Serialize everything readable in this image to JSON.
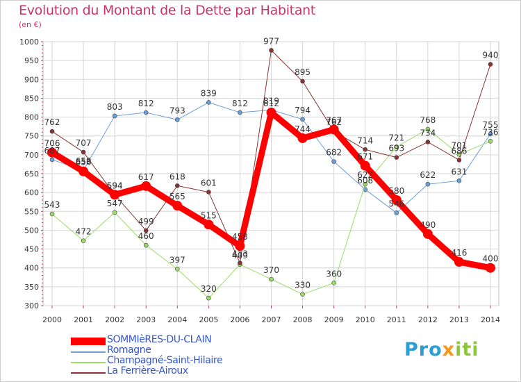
{
  "title": "Evolution du Montant de la Dette par Habitant",
  "unit": "(en €)",
  "brand": {
    "part1": "Pro",
    "part2": "x",
    "part3": "iti"
  },
  "chart_data": {
    "type": "line",
    "x": [
      "2000",
      "2001",
      "2002",
      "2003",
      "2004",
      "2005",
      "2006",
      "2007",
      "2008",
      "2009",
      "2010",
      "2011",
      "2012",
      "2013",
      "2014"
    ],
    "ylim": [
      300,
      1000
    ],
    "yticks": [
      300,
      350,
      400,
      450,
      500,
      550,
      600,
      650,
      700,
      750,
      800,
      850,
      900,
      950,
      1000
    ],
    "grid": true,
    "legend_position": "bottom-left",
    "series": [
      {
        "name": "SOMMIèRES-DU-CLAIN",
        "color": "#ff0000",
        "width": 9,
        "values": [
          706,
          656,
          594,
          617,
          565,
          515,
          458,
          812,
          744,
          767,
          671,
          580,
          490,
          416,
          400
        ],
        "labels": [
          "706",
          "656",
          "594",
          "617",
          "565",
          "515",
          "458",
          "812",
          "744",
          "767",
          "671",
          "580",
          "490",
          "416",
          "400"
        ]
      },
      {
        "name": "Romagne",
        "color": "#6b9fd8",
        "width": 1,
        "values": [
          687,
          659,
          803,
          812,
          793,
          839,
          812,
          819,
          794,
          682,
          608,
          546,
          622,
          631,
          755
        ],
        "labels": [
          "687",
          "659",
          "803",
          "812",
          "793",
          "839",
          "812",
          "819",
          "794",
          "682",
          "608",
          "546",
          "622",
          "631",
          "755"
        ]
      },
      {
        "name": "Champagné-Saint-Hilaire",
        "color": "#99dd66",
        "width": 1,
        "values": [
          543,
          472,
          547,
          460,
          397,
          320,
          409,
          370,
          330,
          360,
          622,
          721,
          768,
          701,
          736
        ],
        "labels": [
          "543",
          "472",
          "547",
          "460",
          "397",
          "320",
          "409",
          "370",
          "330",
          "360",
          "622",
          "721",
          "768",
          "701",
          "736"
        ]
      },
      {
        "name": "La Ferrière-Airoux",
        "color": "#883333",
        "width": 1,
        "values": [
          762,
          707,
          594,
          499,
          618,
          601,
          413,
          977,
          895,
          762,
          714,
          693,
          734,
          686,
          940
        ],
        "labels": [
          "762",
          "707",
          "594",
          "499",
          "618",
          "601",
          "413",
          "977",
          "895",
          "762",
          "714",
          "693",
          "734",
          "686",
          "940"
        ]
      }
    ]
  }
}
